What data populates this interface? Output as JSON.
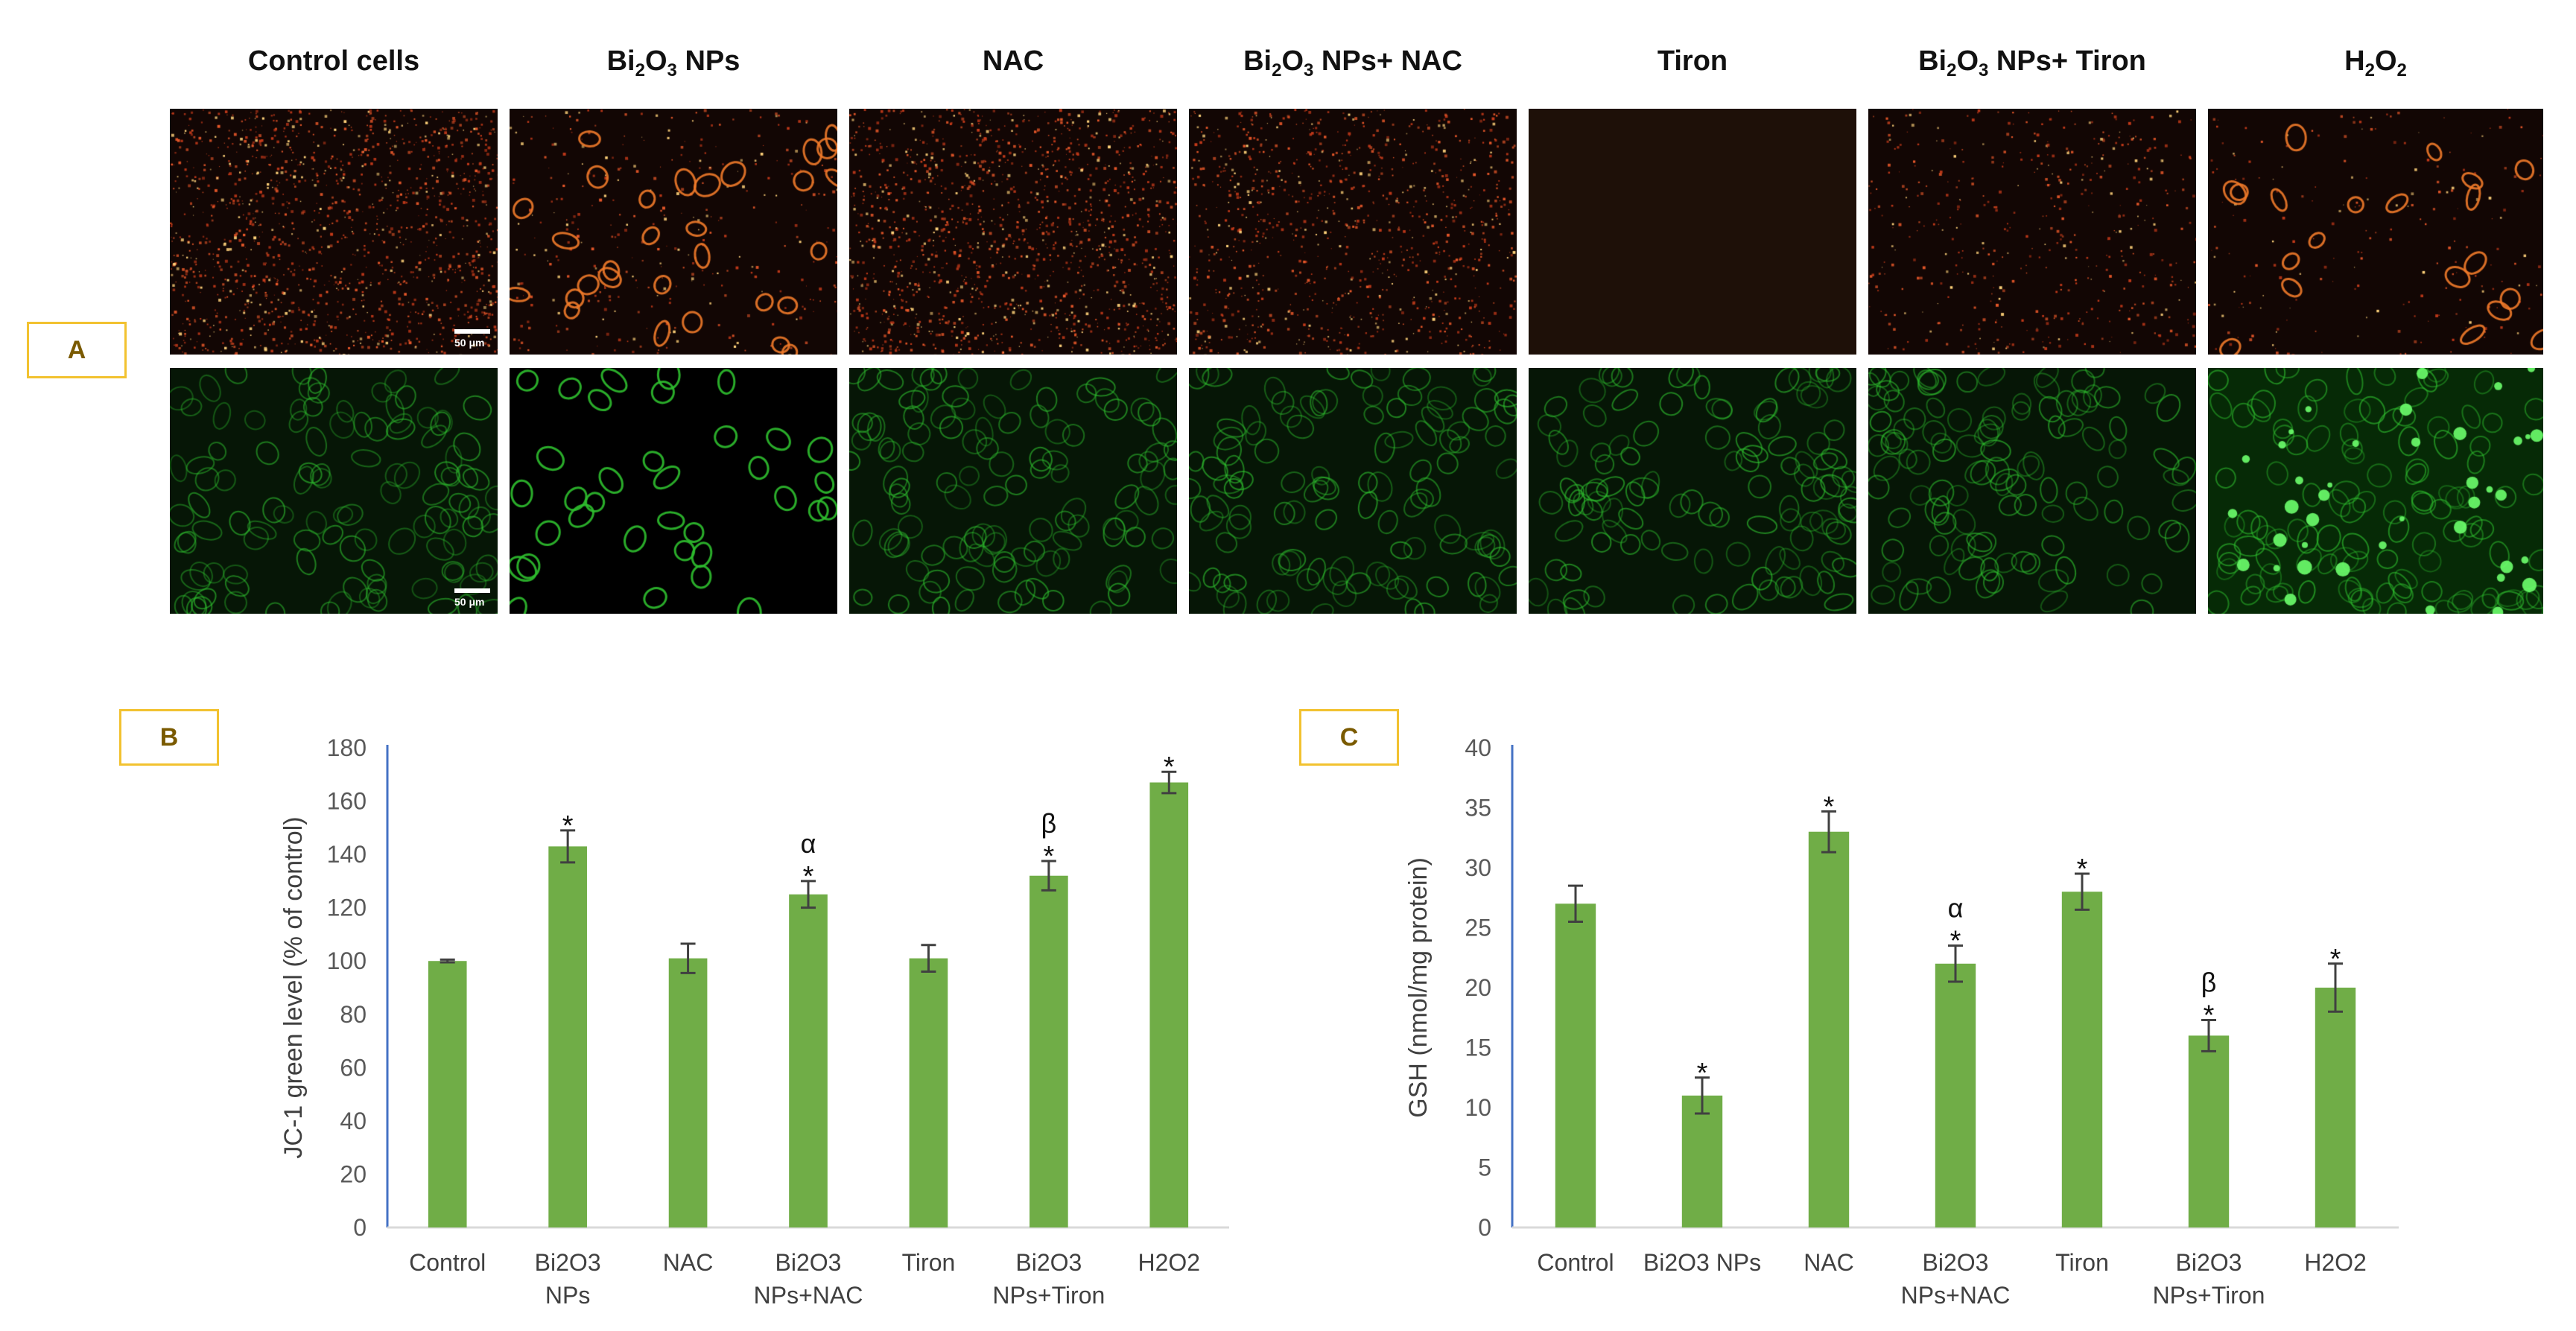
{
  "figure_a": {
    "tag": "A",
    "columns": [
      {
        "prefix": "Control cells",
        "sub": "",
        "suffix": ""
      },
      {
        "prefix": "Bi",
        "sub": "2",
        "mid": "O",
        "sub2": "3",
        "suffix": " NPs"
      },
      {
        "prefix": "NAC",
        "sub": "",
        "suffix": ""
      },
      {
        "prefix": "Bi",
        "sub": "2",
        "mid": "O",
        "sub2": "3",
        "suffix": " NPs+ NAC"
      },
      {
        "prefix": "Tiron",
        "sub": "",
        "suffix": ""
      },
      {
        "prefix": "Bi",
        "sub": "2",
        "mid": "O",
        "sub2": "3",
        "suffix": " NPs+ Tiron"
      },
      {
        "prefix": "H",
        "sub": "2",
        "mid": "O",
        "sub2": "2",
        "suffix": ""
      }
    ],
    "scale_label": "50 μm",
    "red_channel_color": "#e8582a",
    "green_channel_color": "#2fbf2f"
  },
  "chart_data": [
    {
      "type": "bar",
      "panel_tag": "B",
      "categories": [
        "Control",
        "Bi2O3 NPs",
        "NAC",
        "Bi2O3 NPs+NAC",
        "Tiron",
        "Bi2O3 NPs+Tiron",
        "H2O2"
      ],
      "category_lines": [
        [
          "Control"
        ],
        [
          "Bi2O3",
          "NPs"
        ],
        [
          "NAC"
        ],
        [
          "Bi2O3",
          "NPs+NAC"
        ],
        [
          "Tiron"
        ],
        [
          "Bi2O3",
          "NPs+Tiron"
        ],
        [
          "H2O2"
        ]
      ],
      "values": [
        100,
        143,
        101,
        125,
        101,
        132,
        167
      ],
      "errors": [
        0.5,
        6,
        5.5,
        5,
        5,
        5.5,
        4
      ],
      "annotations": [
        [],
        [
          "*"
        ],
        [],
        [
          "α",
          "*"
        ],
        [],
        [
          "β",
          "*"
        ],
        [
          "*"
        ]
      ],
      "ylabel": "JC-1 green level (% of control)",
      "xlabel": "",
      "ylim": [
        0,
        180
      ],
      "yticks": [
        0,
        20,
        40,
        60,
        80,
        100,
        120,
        140,
        160,
        180
      ],
      "grid": false,
      "bar_color": "#70ad47",
      "axis_color": "#4472c4"
    },
    {
      "type": "bar",
      "panel_tag": "C",
      "categories": [
        "Control",
        "Bi2O3 NPs",
        "NAC",
        "Bi2O3 NPs+NAC",
        "Tiron",
        "Bi2O3 NPs+Tiron",
        "H2O2"
      ],
      "category_lines": [
        [
          "Control"
        ],
        [
          "Bi2O3 NPs"
        ],
        [
          "NAC"
        ],
        [
          "Bi2O3",
          "NPs+NAC"
        ],
        [
          "Tiron"
        ],
        [
          "Bi2O3",
          "NPs+Tiron"
        ],
        [
          "H2O2"
        ]
      ],
      "values": [
        27,
        11,
        33,
        22,
        28,
        16,
        20
      ],
      "errors": [
        1.5,
        1.5,
        1.7,
        1.5,
        1.5,
        1.3,
        2.0
      ],
      "annotations": [
        [],
        [
          "*"
        ],
        [
          "*"
        ],
        [
          "α",
          "*"
        ],
        [
          "*"
        ],
        [
          "β",
          "*"
        ],
        [
          "*"
        ]
      ],
      "ylabel": "GSH (nmol/mg protein)",
      "xlabel": "",
      "ylim": [
        0,
        40
      ],
      "yticks": [
        0,
        5,
        10,
        15,
        20,
        25,
        30,
        35,
        40
      ],
      "grid": false,
      "bar_color": "#70ad47",
      "axis_color": "#4472c4"
    }
  ]
}
